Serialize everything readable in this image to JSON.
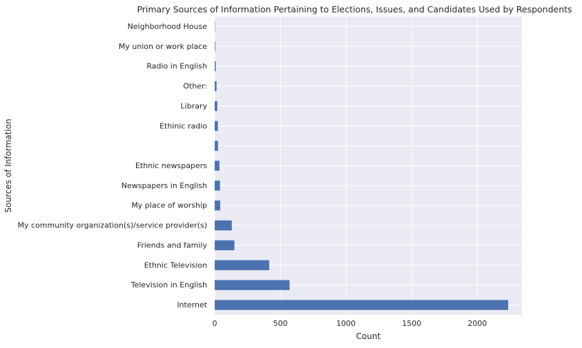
{
  "chart_data": {
    "type": "bar",
    "orientation": "horizontal",
    "title": "Primary Sources of Information Pertaining to Elections, Issues, and Candidates Used by Respondents",
    "xlabel": "Count",
    "ylabel": "Sources of Information",
    "xlim": [
      0,
      2340
    ],
    "x_ticks": [
      0,
      500,
      1000,
      1500,
      2000
    ],
    "grid": true,
    "legend": "none",
    "colors": {
      "bar": "#4c72b0",
      "plot_background": "#eaeaf2",
      "grid": "#ffffff",
      "text": "#262626"
    },
    "categories": [
      "Internet",
      "Television in English",
      "Ethnic Television",
      "Friends and family",
      "My community organization(s)/service provider(s)",
      "My place of worship",
      "Newspapers in English",
      "Ethnic newspapers",
      "",
      "Ethinic radio",
      "Library",
      "Other:",
      "Radio in English",
      "My union or work place",
      "Neighborhood House"
    ],
    "values": [
      2235,
      570,
      415,
      150,
      130,
      42,
      40,
      36,
      25,
      24,
      20,
      14,
      8,
      4,
      2
    ]
  }
}
